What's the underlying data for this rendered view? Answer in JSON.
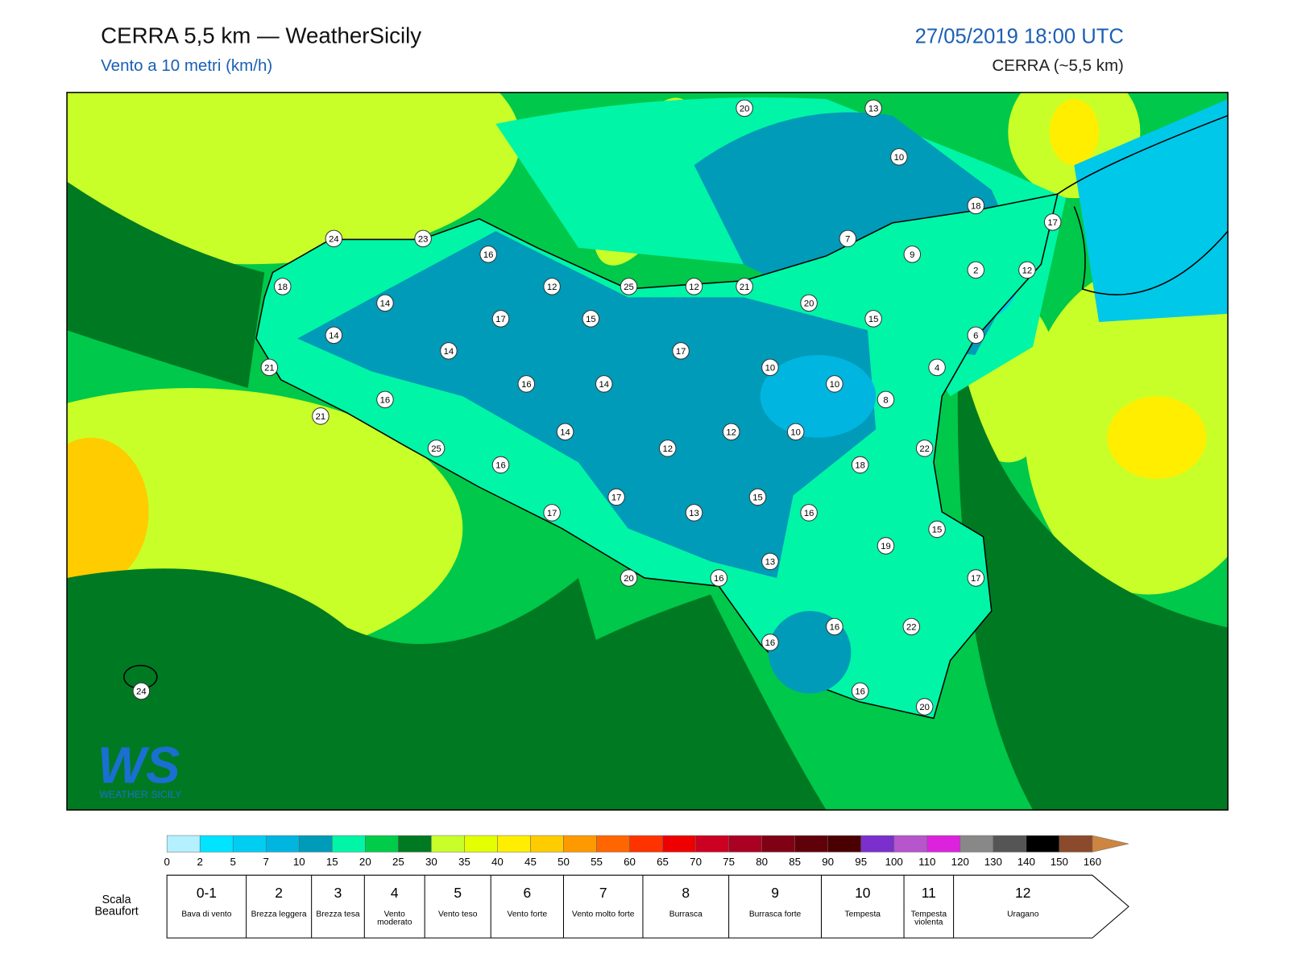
{
  "header": {
    "title": "CERRA 5,5 km — WeatherSicily",
    "subtitle": "Vento a 10 metri (km/h)",
    "datetime": "27/05/2019 18:00 UTC",
    "model": "CERRA (~5,5 km)"
  },
  "map": {
    "station_values": [
      20,
      13,
      10,
      18,
      17,
      24,
      23,
      7,
      16,
      9,
      2,
      12,
      18,
      12,
      25,
      12,
      21,
      14,
      20,
      17,
      15,
      15,
      14,
      6,
      14,
      17,
      21,
      10,
      4,
      16,
      14,
      10,
      16,
      8,
      21,
      14,
      12,
      10,
      25,
      12,
      22,
      16,
      18,
      17,
      15,
      13,
      16,
      17,
      15,
      19,
      13,
      20,
      16,
      17,
      16,
      22,
      16,
      24,
      16,
      20
    ]
  },
  "colorbar": {
    "ticks": [
      0,
      2,
      5,
      7,
      10,
      15,
      20,
      25,
      30,
      35,
      40,
      45,
      50,
      55,
      60,
      65,
      70,
      75,
      80,
      85,
      90,
      95,
      100,
      110,
      120,
      130,
      140,
      150,
      160
    ],
    "colors": [
      "#b4f0ff",
      "#00e4ff",
      "#00cdf2",
      "#00b5e0",
      "#009bb8",
      "#00f5a6",
      "#00cc4a",
      "#007a22",
      "#c8ff28",
      "#e4ff00",
      "#ffee00",
      "#ffcc00",
      "#ff9900",
      "#ff6600",
      "#ff3300",
      "#ee0000",
      "#cc0022",
      "#aa0022",
      "#800014",
      "#600008",
      "#4a0000",
      "#7b2fcc",
      "#b655cc",
      "#dd22dd",
      "#888888",
      "#555555",
      "#000000",
      "#8b4a2b",
      "#cd853f"
    ]
  },
  "beaufort": {
    "title": "Scala Beaufort",
    "levels": [
      {
        "force": "0-1",
        "label": "Bava di vento"
      },
      {
        "force": "2",
        "label": "Brezza leggera"
      },
      {
        "force": "3",
        "label": "Brezza tesa"
      },
      {
        "force": "4",
        "label": "Vento moderato"
      },
      {
        "force": "5",
        "label": "Vento teso"
      },
      {
        "force": "6",
        "label": "Vento forte"
      },
      {
        "force": "7",
        "label": "Vento molto forte"
      },
      {
        "force": "8",
        "label": "Burrasca"
      },
      {
        "force": "9",
        "label": "Burrasca forte"
      },
      {
        "force": "10",
        "label": "Tempesta"
      },
      {
        "force": "11",
        "label": "Tempesta violenta"
      },
      {
        "force": "12",
        "label": "Uragano"
      }
    ]
  },
  "logo": {
    "mark": "WS",
    "text": "WEATHER SICILY"
  }
}
